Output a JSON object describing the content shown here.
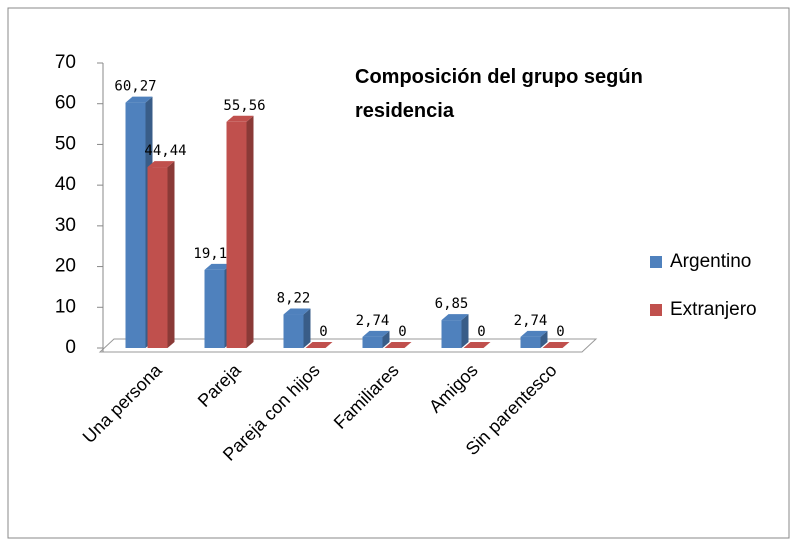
{
  "chart_data": {
    "type": "bar3d",
    "title": "Composición del grupo según residencia",
    "categories": [
      "Una persona",
      "Pareja",
      "Pareja con hijos",
      "Familiares",
      "Amigos",
      "Sin parentesco"
    ],
    "series": [
      {
        "name": "Argentino",
        "color": "#4f81bd",
        "values": [
          60.27,
          19.18,
          8.22,
          2.74,
          6.85,
          2.74
        ],
        "value_labels": [
          "60,27",
          "19,18",
          "8,22",
          "2,74",
          "6,85",
          "2,74"
        ]
      },
      {
        "name": "Extranjero",
        "color": "#c0504d",
        "values": [
          44.44,
          55.56,
          0,
          0,
          0,
          0
        ],
        "value_labels": [
          "44,44",
          "55,56",
          "0",
          "0",
          "0",
          "0"
        ]
      }
    ],
    "ylim": [
      0,
      70
    ],
    "yticks": [
      0,
      10,
      20,
      30,
      40,
      50,
      60,
      70
    ],
    "legend": "right"
  }
}
